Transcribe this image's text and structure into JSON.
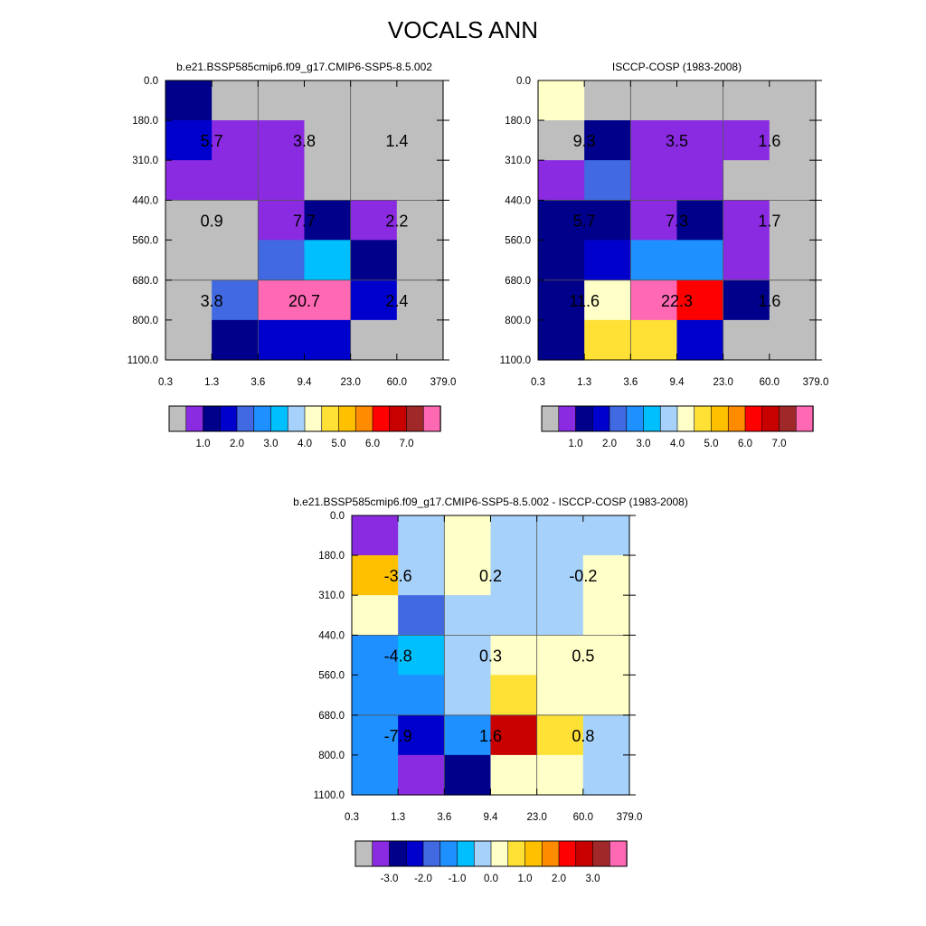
{
  "title": "VOCALS ANN",
  "palettes": {
    "abs": [
      "#bebebe",
      "#8a2be2",
      "#00008b",
      "#0000cd",
      "#4169e1",
      "#1e90ff",
      "#00bfff",
      "#a6d1fa",
      "#ffffc8",
      "#ffe135",
      "#ffc000",
      "#ff8c00",
      "#ff0000",
      "#c80000",
      "#a02828",
      "#ff69b4"
    ],
    "diff": [
      "#bebebe",
      "#8a2be2",
      "#00008b",
      "#0000cd",
      "#4169e1",
      "#1e90ff",
      "#00bfff",
      "#a6d1fa",
      "#ffffc8",
      "#ffe135",
      "#ffc000",
      "#ff8c00",
      "#ff0000",
      "#c80000",
      "#a02828",
      "#ff69b4"
    ]
  },
  "chart_data": [
    {
      "type": "heatmap",
      "title": "b.e21.BSSP585cmip6.f09_g17.CMIP6-SSP5-8.5.002",
      "x_ticks": [
        "0.3",
        "1.3",
        "3.6",
        "9.4",
        "23.0",
        "60.0",
        "379.0"
      ],
      "y_ticks": [
        "0.0",
        "180.0",
        "310.0",
        "440.0",
        "560.0",
        "680.0",
        "800.0",
        "1100.0"
      ],
      "cells": [
        [
          2,
          0,
          0,
          0,
          0,
          0
        ],
        [
          3,
          1,
          1,
          0,
          0,
          0
        ],
        [
          1,
          1,
          1,
          0,
          0,
          0
        ],
        [
          0,
          0,
          1,
          2,
          1,
          0
        ],
        [
          0,
          0,
          4,
          6,
          2,
          0
        ],
        [
          0,
          4,
          15,
          15,
          3,
          0
        ],
        [
          0,
          2,
          3,
          3,
          0,
          0
        ]
      ],
      "cell_labels": [
        {
          "text": "5.7",
          "col": 1,
          "row": 1
        },
        {
          "text": "3.8",
          "col": 3,
          "row": 1
        },
        {
          "text": "1.4",
          "col": 5,
          "row": 1
        },
        {
          "text": "0.9",
          "col": 1,
          "row": 3
        },
        {
          "text": "7.7",
          "col": 3,
          "row": 3
        },
        {
          "text": "2.2",
          "col": 5,
          "row": 3
        },
        {
          "text": "3.8",
          "col": 1,
          "row": 5
        },
        {
          "text": "20.7",
          "col": 3,
          "row": 5
        },
        {
          "text": "2.4",
          "col": 5,
          "row": 5
        }
      ],
      "colorbar_labels": [
        "1.0",
        "2.0",
        "3.0",
        "4.0",
        "5.0",
        "6.0",
        "7.0"
      ],
      "palette": "abs"
    },
    {
      "type": "heatmap",
      "title": "ISCCP-COSP (1983-2008)",
      "x_ticks": [
        "0.3",
        "1.3",
        "3.6",
        "9.4",
        "23.0",
        "60.0",
        "379.0"
      ],
      "y_ticks": [
        "0.0",
        "180.0",
        "310.0",
        "440.0",
        "560.0",
        "680.0",
        "800.0",
        "1100.0"
      ],
      "cells": [
        [
          8,
          0,
          0,
          0,
          0,
          0
        ],
        [
          0,
          2,
          1,
          1,
          1,
          0
        ],
        [
          1,
          4,
          1,
          1,
          0,
          0
        ],
        [
          2,
          2,
          1,
          2,
          1,
          0
        ],
        [
          2,
          3,
          5,
          5,
          1,
          0
        ],
        [
          2,
          8,
          15,
          12,
          2,
          0
        ],
        [
          2,
          9,
          9,
          3,
          0,
          0
        ]
      ],
      "cell_labels": [
        {
          "text": "9.3",
          "col": 1,
          "row": 1
        },
        {
          "text": "3.5",
          "col": 3,
          "row": 1
        },
        {
          "text": "1.6",
          "col": 5,
          "row": 1
        },
        {
          "text": "5.7",
          "col": 1,
          "row": 3
        },
        {
          "text": "7.3",
          "col": 3,
          "row": 3
        },
        {
          "text": "1.7",
          "col": 5,
          "row": 3
        },
        {
          "text": "11.6",
          "col": 1,
          "row": 5
        },
        {
          "text": "22.3",
          "col": 3,
          "row": 5
        },
        {
          "text": "1.6",
          "col": 5,
          "row": 5
        }
      ],
      "colorbar_labels": [
        "1.0",
        "2.0",
        "3.0",
        "4.0",
        "5.0",
        "6.0",
        "7.0"
      ],
      "palette": "abs"
    },
    {
      "type": "heatmap",
      "title": "b.e21.BSSP585cmip6.f09_g17.CMIP6-SSP5-8.5.002 - ISCCP-COSP (1983-2008)",
      "x_ticks": [
        "0.3",
        "1.3",
        "3.6",
        "9.4",
        "23.0",
        "60.0",
        "379.0"
      ],
      "y_ticks": [
        "0.0",
        "180.0",
        "310.0",
        "440.0",
        "560.0",
        "680.0",
        "800.0",
        "1100.0"
      ],
      "cells": [
        [
          1,
          7,
          8,
          7,
          7,
          7
        ],
        [
          10,
          7,
          8,
          7,
          7,
          8
        ],
        [
          8,
          4,
          7,
          7,
          7,
          8
        ],
        [
          5,
          6,
          7,
          8,
          8,
          8
        ],
        [
          5,
          5,
          7,
          9,
          8,
          8
        ],
        [
          5,
          3,
          5,
          13,
          9,
          7
        ],
        [
          5,
          1,
          2,
          8,
          8,
          7
        ]
      ],
      "cell_labels": [
        {
          "text": "-3.6",
          "col": 1,
          "row": 1
        },
        {
          "text": "0.2",
          "col": 3,
          "row": 1
        },
        {
          "text": "-0.2",
          "col": 5,
          "row": 1
        },
        {
          "text": "-4.8",
          "col": 1,
          "row": 3
        },
        {
          "text": "0.3",
          "col": 3,
          "row": 3
        },
        {
          "text": "0.5",
          "col": 5,
          "row": 3
        },
        {
          "text": "-7.9",
          "col": 1,
          "row": 5
        },
        {
          "text": "1.6",
          "col": 3,
          "row": 5
        },
        {
          "text": "0.8",
          "col": 5,
          "row": 5
        }
      ],
      "colorbar_labels": [
        "-3.0",
        "-2.0",
        "-1.0",
        "0.0",
        "1.0",
        "2.0",
        "3.0"
      ],
      "palette": "diff"
    }
  ]
}
